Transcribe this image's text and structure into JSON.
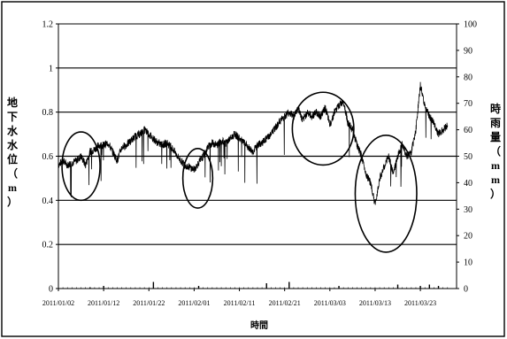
{
  "chart_data": {
    "type": "line",
    "title": "",
    "xlabel": "時間",
    "ylabel": [
      "地",
      "下",
      "水",
      "水",
      "位",
      "（",
      "m",
      "）"
    ],
    "ylabel_right": [
      "時",
      "雨",
      "量",
      "（",
      "m",
      "m",
      "）"
    ],
    "ylim": [
      0,
      1.2
    ],
    "ylim_right": [
      0,
      100
    ],
    "y_ticks": [
      "0",
      "0.2",
      "0.4",
      "0.6",
      "0.8",
      "1",
      "1.2"
    ],
    "y_ticks_right": [
      "0",
      "10",
      "20",
      "30",
      "40",
      "50",
      "60",
      "70",
      "80",
      "90",
      "100"
    ],
    "x_ticks": [
      "2011/01/02",
      "2011/01/12",
      "2011/01/22",
      "2011/02/01",
      "2011/02/11",
      "2011/02/21",
      "2011/03/03",
      "2011/03/13",
      "2011/03/23"
    ],
    "grid": "horizontal",
    "series": [
      {
        "values_x_days": [
          0,
          1,
          2,
          3,
          4,
          5,
          6,
          7,
          8,
          9,
          10,
          11,
          12,
          13,
          14,
          15,
          16,
          17,
          18,
          19,
          20,
          21,
          22,
          23,
          24,
          25,
          26,
          27,
          28,
          29,
          30,
          31,
          32,
          33,
          34,
          35,
          36,
          37,
          38,
          39,
          40,
          41,
          42,
          43,
          44,
          45,
          46,
          47,
          48,
          49,
          50,
          51,
          52,
          53,
          54,
          55,
          56,
          57,
          58,
          59,
          60,
          61,
          62,
          63,
          64,
          65,
          66,
          67,
          68,
          69,
          70,
          71,
          72,
          73,
          74,
          75,
          76,
          77,
          78,
          79,
          80,
          81,
          82,
          83,
          84,
          85,
          86
        ],
        "values": [
          0.56,
          0.58,
          0.56,
          0.57,
          0.58,
          0.6,
          0.56,
          0.62,
          0.63,
          0.65,
          0.65,
          0.66,
          0.62,
          0.58,
          0.64,
          0.65,
          0.67,
          0.69,
          0.7,
          0.72,
          0.7,
          0.68,
          0.66,
          0.65,
          0.66,
          0.64,
          0.61,
          0.58,
          0.56,
          0.55,
          0.54,
          0.57,
          0.6,
          0.64,
          0.66,
          0.65,
          0.67,
          0.66,
          0.68,
          0.7,
          0.68,
          0.66,
          0.64,
          0.62,
          0.65,
          0.66,
          0.68,
          0.7,
          0.73,
          0.76,
          0.78,
          0.8,
          0.78,
          0.82,
          0.76,
          0.8,
          0.78,
          0.8,
          0.78,
          0.82,
          0.74,
          0.8,
          0.83,
          0.85,
          0.75,
          0.72,
          0.65,
          0.6,
          0.52,
          0.48,
          0.38,
          0.5,
          0.55,
          0.6,
          0.52,
          0.6,
          0.66,
          0.6,
          0.62,
          0.72,
          0.92,
          0.83,
          0.78,
          0.75,
          0.7,
          0.72,
          0.74
        ]
      }
    ],
    "rainfall": {
      "x_days": [
        7,
        10,
        21,
        31,
        46,
        51,
        62,
        75,
        80,
        82,
        84
      ],
      "values": [
        0.5,
        1,
        2.5,
        1,
        2,
        2.5,
        1,
        1.5,
        1,
        1.5,
        1
      ]
    },
    "annotations": [
      "ellipse",
      "ellipse",
      "ellipse",
      "ellipse"
    ]
  }
}
